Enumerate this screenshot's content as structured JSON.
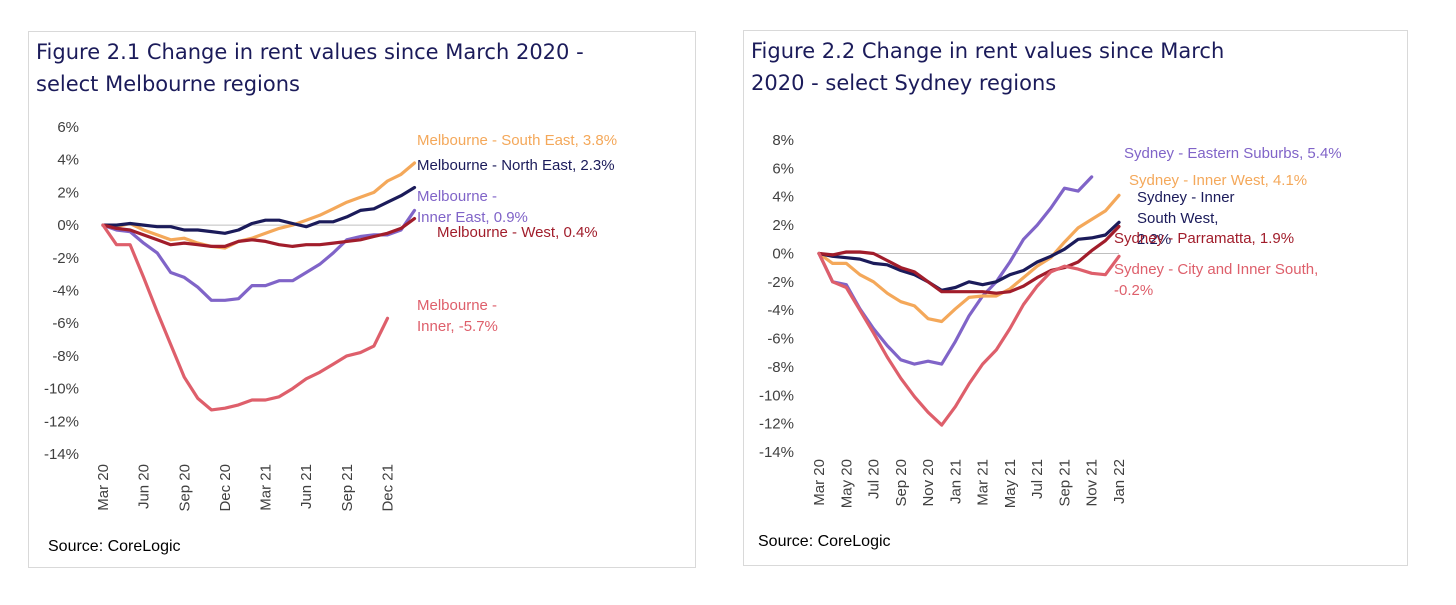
{
  "chart_data": [
    {
      "type": "line",
      "title": "Figure 2.1 Change in rent values since March 2020 -\nselect Melbourne regions",
      "source": "Source: CoreLogic",
      "xlabel": "",
      "ylabel": "",
      "ylim": [
        -14,
        6
      ],
      "yticks": [
        "6%",
        "4%",
        "2%",
        "0%",
        "-2%",
        "-4%",
        "-6%",
        "-8%",
        "-10%",
        "-12%",
        "-14%"
      ],
      "ytick_values": [
        6,
        4,
        2,
        0,
        -2,
        -4,
        -6,
        -8,
        -10,
        -12,
        -14
      ],
      "x_tick_labels": [
        "Mar 20",
        "Jun 20",
        "Sep 20",
        "Dec 20",
        "Mar 21",
        "Jun 21",
        "Sep 21",
        "Dec 21"
      ],
      "x_tick_positions": [
        0,
        3,
        6,
        9,
        12,
        15,
        18,
        21
      ],
      "x_max": 22,
      "grid": false,
      "legend": "direct labels at line ends",
      "series": [
        {
          "name": "Melbourne - South East, 3.8%",
          "label_lines": [
            "Melbourne - South East, 3.8%"
          ],
          "color": "#f4a85a",
          "values": [
            0,
            -0.1,
            0.1,
            -0.3,
            -0.6,
            -0.9,
            -0.8,
            -1.1,
            -1.3,
            -1.4,
            -1.0,
            -0.8,
            -0.5,
            -0.2,
            0.0,
            0.3,
            0.6,
            1.0,
            1.4,
            1.7,
            2.0,
            2.7,
            3.1,
            3.8
          ]
        },
        {
          "name": "Melbourne - North East, 2.3%",
          "label_lines": [
            "Melbourne - North East, 2.3%"
          ],
          "color": "#1b1b5a",
          "values": [
            0,
            0,
            0.1,
            0,
            -0.1,
            -0.1,
            -0.3,
            -0.3,
            -0.4,
            -0.5,
            -0.3,
            0.1,
            0.3,
            0.3,
            0.1,
            -0.1,
            0.2,
            0.2,
            0.5,
            0.9,
            1.0,
            1.4,
            1.8,
            2.3
          ]
        },
        {
          "name": "Melbourne - Inner East, 0.9%",
          "label_lines": [
            "Melbourne -",
            "Inner East, 0.9%"
          ],
          "color": "#8064c8",
          "values": [
            0,
            -0.3,
            -0.4,
            -1.1,
            -1.7,
            -2.9,
            -3.2,
            -3.8,
            -4.6,
            -4.6,
            -4.5,
            -3.7,
            -3.7,
            -3.4,
            -3.4,
            -2.9,
            -2.4,
            -1.7,
            -0.9,
            -0.7,
            -0.6,
            -0.6,
            -0.3,
            0.9
          ]
        },
        {
          "name": "Melbourne - West, 0.4%",
          "label_lines": [
            "Melbourne - West, 0.4%"
          ],
          "color": "#a11d2b",
          "values": [
            0,
            -0.2,
            -0.3,
            -0.6,
            -0.9,
            -1.2,
            -1.1,
            -1.2,
            -1.3,
            -1.3,
            -1.0,
            -0.9,
            -1.0,
            -1.2,
            -1.3,
            -1.2,
            -1.2,
            -1.1,
            -1.0,
            -0.9,
            -0.7,
            -0.5,
            -0.2,
            0.4
          ]
        },
        {
          "name": "Melbourne - Inner, -5.7%",
          "label_lines": [
            "Melbourne -",
            "Inner, -5.7%"
          ],
          "color": "#de5f6b",
          "values": [
            0,
            -1.2,
            -1.2,
            -3.2,
            -5.3,
            -7.3,
            -9.3,
            -10.6,
            -11.3,
            -11.2,
            -11.0,
            -10.7,
            -10.7,
            -10.5,
            -10.0,
            -9.4,
            -9.0,
            -8.5,
            -8.0,
            -7.8,
            -7.4,
            -5.7
          ]
        }
      ]
    },
    {
      "type": "line",
      "title": "Figure 2.2 Change in rent values since March\n2020 - select Sydney regions",
      "source": "Source: CoreLogic",
      "xlabel": "",
      "ylabel": "",
      "ylim": [
        -14,
        8
      ],
      "yticks": [
        "8%",
        "6%",
        "4%",
        "2%",
        "0%",
        "-2%",
        "-4%",
        "-6%",
        "-8%",
        "-10%",
        "-12%",
        "-14%"
      ],
      "ytick_values": [
        8,
        6,
        4,
        2,
        0,
        -2,
        -4,
        -6,
        -8,
        -10,
        -12,
        -14
      ],
      "x_tick_labels": [
        "Mar 20",
        "May 20",
        "Jul 20",
        "Sep 20",
        "Nov 20",
        "Jan 21",
        "Mar 21",
        "May 21",
        "Jul 21",
        "Sep 21",
        "Nov 21",
        "Jan 22"
      ],
      "x_tick_positions": [
        0,
        2,
        4,
        6,
        8,
        10,
        12,
        14,
        16,
        18,
        20,
        22
      ],
      "x_max": 22,
      "grid": false,
      "legend": "direct labels at line ends",
      "series": [
        {
          "name": "Sydney - Eastern Suburbs, 5.4%",
          "label_lines": [
            "Sydney - Eastern Suburbs, 5.4%"
          ],
          "color": "#8064c8",
          "values": [
            0,
            -2.0,
            -2.2,
            -3.9,
            -5.3,
            -6.5,
            -7.5,
            -7.8,
            -7.6,
            -7.8,
            -6.2,
            -4.4,
            -3.0,
            -2.0,
            -0.6,
            1.0,
            2.0,
            3.2,
            4.6,
            4.4,
            5.4
          ]
        },
        {
          "name": "Sydney - Inner West, 4.1%",
          "label_lines": [
            "Sydney - Inner West, 4.1%"
          ],
          "color": "#f4a85a",
          "values": [
            0,
            -0.7,
            -0.7,
            -1.5,
            -2.0,
            -2.8,
            -3.4,
            -3.7,
            -4.6,
            -4.8,
            -3.9,
            -3.1,
            -3.0,
            -3.0,
            -2.5,
            -1.7,
            -0.9,
            -0.3,
            0.8,
            1.8,
            2.4,
            3.0,
            4.1
          ]
        },
        {
          "name": "Sydney - Inner South West, 2.2%",
          "label_lines": [
            "Sydney - Inner",
            "South West,",
            "2.2%"
          ],
          "color": "#1b1b5a",
          "values": [
            0,
            -0.2,
            -0.3,
            -0.4,
            -0.7,
            -0.8,
            -1.2,
            -1.5,
            -2.0,
            -2.6,
            -2.4,
            -2.0,
            -2.2,
            -2.0,
            -1.5,
            -1.2,
            -0.6,
            -0.2,
            0.3,
            1.0,
            1.1,
            1.3,
            2.2
          ]
        },
        {
          "name": "Sydney - Parramatta, 1.9%",
          "label_lines": [
            "Sydney - Parramatta, 1.9%"
          ],
          "color": "#a11d2b",
          "values": [
            0,
            -0.1,
            0.1,
            0.1,
            0,
            -0.5,
            -1.0,
            -1.3,
            -2.0,
            -2.7,
            -2.7,
            -2.7,
            -2.7,
            -2.8,
            -2.7,
            -2.3,
            -1.7,
            -1.2,
            -1.0,
            -0.6,
            0.2,
            0.9,
            1.9
          ]
        },
        {
          "name": "Sydney - City and Inner South, -0.2%",
          "label_lines": [
            "Sydney - City and Inner South,",
            "-0.2%"
          ],
          "color": "#de5f6b",
          "values": [
            0,
            -2.0,
            -2.4,
            -4.0,
            -5.6,
            -7.3,
            -8.8,
            -10.1,
            -11.2,
            -12.1,
            -10.8,
            -9.2,
            -7.8,
            -6.8,
            -5.3,
            -3.6,
            -2.3,
            -1.3,
            -0.9,
            -1.1,
            -1.4,
            -1.5,
            -0.2
          ]
        }
      ]
    }
  ]
}
